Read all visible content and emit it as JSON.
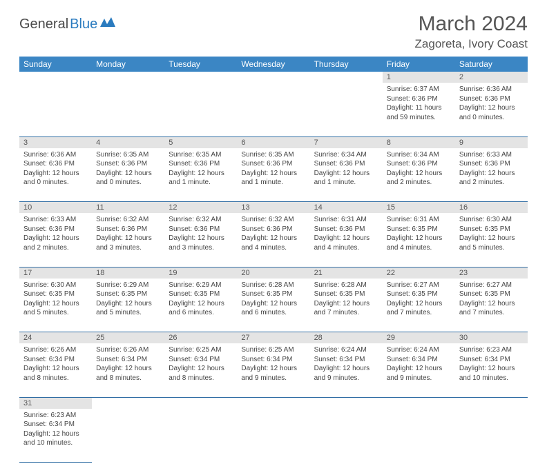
{
  "logo": {
    "text1": "General",
    "text2": "Blue"
  },
  "title": "March 2024",
  "location": "Zagoreta, Ivory Coast",
  "colors": {
    "header_bg": "#3b86c4",
    "header_fg": "#ffffff",
    "daynum_bg": "#e4e4e4",
    "row_border": "#2e6ca3",
    "text": "#444444",
    "title_color": "#555555"
  },
  "weekdays": [
    "Sunday",
    "Monday",
    "Tuesday",
    "Wednesday",
    "Thursday",
    "Friday",
    "Saturday"
  ],
  "weeks": [
    {
      "days": [
        {
          "n": "",
          "lines": []
        },
        {
          "n": "",
          "lines": []
        },
        {
          "n": "",
          "lines": []
        },
        {
          "n": "",
          "lines": []
        },
        {
          "n": "",
          "lines": []
        },
        {
          "n": "1",
          "lines": [
            "Sunrise: 6:37 AM",
            "Sunset: 6:36 PM",
            "Daylight: 11 hours and 59 minutes."
          ]
        },
        {
          "n": "2",
          "lines": [
            "Sunrise: 6:36 AM",
            "Sunset: 6:36 PM",
            "Daylight: 12 hours and 0 minutes."
          ]
        }
      ]
    },
    {
      "days": [
        {
          "n": "3",
          "lines": [
            "Sunrise: 6:36 AM",
            "Sunset: 6:36 PM",
            "Daylight: 12 hours and 0 minutes."
          ]
        },
        {
          "n": "4",
          "lines": [
            "Sunrise: 6:35 AM",
            "Sunset: 6:36 PM",
            "Daylight: 12 hours and 0 minutes."
          ]
        },
        {
          "n": "5",
          "lines": [
            "Sunrise: 6:35 AM",
            "Sunset: 6:36 PM",
            "Daylight: 12 hours and 1 minute."
          ]
        },
        {
          "n": "6",
          "lines": [
            "Sunrise: 6:35 AM",
            "Sunset: 6:36 PM",
            "Daylight: 12 hours and 1 minute."
          ]
        },
        {
          "n": "7",
          "lines": [
            "Sunrise: 6:34 AM",
            "Sunset: 6:36 PM",
            "Daylight: 12 hours and 1 minute."
          ]
        },
        {
          "n": "8",
          "lines": [
            "Sunrise: 6:34 AM",
            "Sunset: 6:36 PM",
            "Daylight: 12 hours and 2 minutes."
          ]
        },
        {
          "n": "9",
          "lines": [
            "Sunrise: 6:33 AM",
            "Sunset: 6:36 PM",
            "Daylight: 12 hours and 2 minutes."
          ]
        }
      ]
    },
    {
      "days": [
        {
          "n": "10",
          "lines": [
            "Sunrise: 6:33 AM",
            "Sunset: 6:36 PM",
            "Daylight: 12 hours and 2 minutes."
          ]
        },
        {
          "n": "11",
          "lines": [
            "Sunrise: 6:32 AM",
            "Sunset: 6:36 PM",
            "Daylight: 12 hours and 3 minutes."
          ]
        },
        {
          "n": "12",
          "lines": [
            "Sunrise: 6:32 AM",
            "Sunset: 6:36 PM",
            "Daylight: 12 hours and 3 minutes."
          ]
        },
        {
          "n": "13",
          "lines": [
            "Sunrise: 6:32 AM",
            "Sunset: 6:36 PM",
            "Daylight: 12 hours and 4 minutes."
          ]
        },
        {
          "n": "14",
          "lines": [
            "Sunrise: 6:31 AM",
            "Sunset: 6:36 PM",
            "Daylight: 12 hours and 4 minutes."
          ]
        },
        {
          "n": "15",
          "lines": [
            "Sunrise: 6:31 AM",
            "Sunset: 6:35 PM",
            "Daylight: 12 hours and 4 minutes."
          ]
        },
        {
          "n": "16",
          "lines": [
            "Sunrise: 6:30 AM",
            "Sunset: 6:35 PM",
            "Daylight: 12 hours and 5 minutes."
          ]
        }
      ]
    },
    {
      "days": [
        {
          "n": "17",
          "lines": [
            "Sunrise: 6:30 AM",
            "Sunset: 6:35 PM",
            "Daylight: 12 hours and 5 minutes."
          ]
        },
        {
          "n": "18",
          "lines": [
            "Sunrise: 6:29 AM",
            "Sunset: 6:35 PM",
            "Daylight: 12 hours and 5 minutes."
          ]
        },
        {
          "n": "19",
          "lines": [
            "Sunrise: 6:29 AM",
            "Sunset: 6:35 PM",
            "Daylight: 12 hours and 6 minutes."
          ]
        },
        {
          "n": "20",
          "lines": [
            "Sunrise: 6:28 AM",
            "Sunset: 6:35 PM",
            "Daylight: 12 hours and 6 minutes."
          ]
        },
        {
          "n": "21",
          "lines": [
            "Sunrise: 6:28 AM",
            "Sunset: 6:35 PM",
            "Daylight: 12 hours and 7 minutes."
          ]
        },
        {
          "n": "22",
          "lines": [
            "Sunrise: 6:27 AM",
            "Sunset: 6:35 PM",
            "Daylight: 12 hours and 7 minutes."
          ]
        },
        {
          "n": "23",
          "lines": [
            "Sunrise: 6:27 AM",
            "Sunset: 6:35 PM",
            "Daylight: 12 hours and 7 minutes."
          ]
        }
      ]
    },
    {
      "days": [
        {
          "n": "24",
          "lines": [
            "Sunrise: 6:26 AM",
            "Sunset: 6:34 PM",
            "Daylight: 12 hours and 8 minutes."
          ]
        },
        {
          "n": "25",
          "lines": [
            "Sunrise: 6:26 AM",
            "Sunset: 6:34 PM",
            "Daylight: 12 hours and 8 minutes."
          ]
        },
        {
          "n": "26",
          "lines": [
            "Sunrise: 6:25 AM",
            "Sunset: 6:34 PM",
            "Daylight: 12 hours and 8 minutes."
          ]
        },
        {
          "n": "27",
          "lines": [
            "Sunrise: 6:25 AM",
            "Sunset: 6:34 PM",
            "Daylight: 12 hours and 9 minutes."
          ]
        },
        {
          "n": "28",
          "lines": [
            "Sunrise: 6:24 AM",
            "Sunset: 6:34 PM",
            "Daylight: 12 hours and 9 minutes."
          ]
        },
        {
          "n": "29",
          "lines": [
            "Sunrise: 6:24 AM",
            "Sunset: 6:34 PM",
            "Daylight: 12 hours and 9 minutes."
          ]
        },
        {
          "n": "30",
          "lines": [
            "Sunrise: 6:23 AM",
            "Sunset: 6:34 PM",
            "Daylight: 12 hours and 10 minutes."
          ]
        }
      ]
    },
    {
      "days": [
        {
          "n": "31",
          "lines": [
            "Sunrise: 6:23 AM",
            "Sunset: 6:34 PM",
            "Daylight: 12 hours and 10 minutes."
          ]
        },
        {
          "n": "",
          "lines": []
        },
        {
          "n": "",
          "lines": []
        },
        {
          "n": "",
          "lines": []
        },
        {
          "n": "",
          "lines": []
        },
        {
          "n": "",
          "lines": []
        },
        {
          "n": "",
          "lines": []
        }
      ]
    }
  ]
}
